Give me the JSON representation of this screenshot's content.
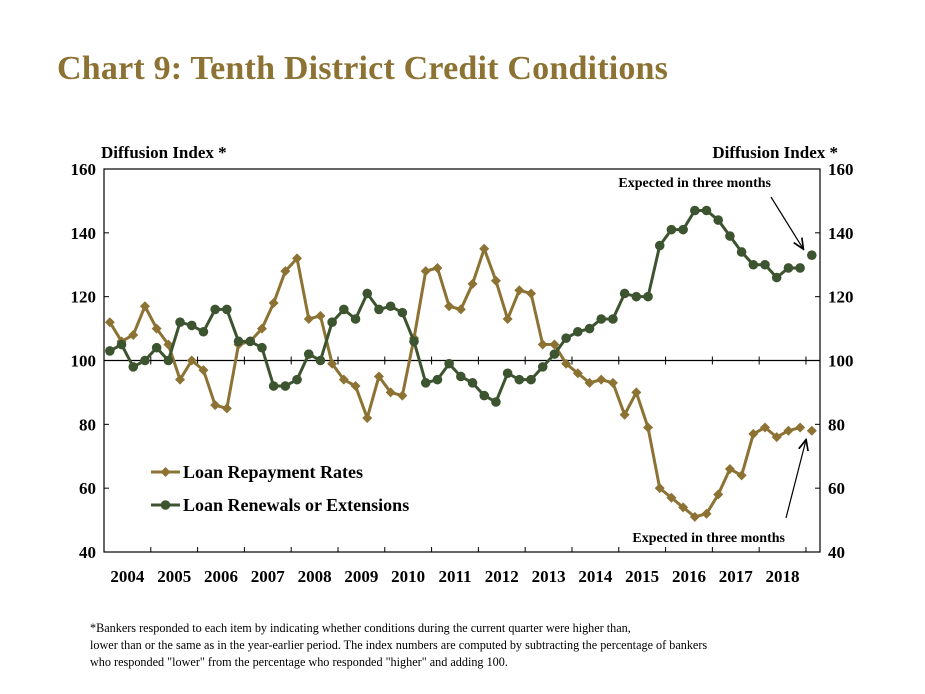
{
  "title": "Chart 9: Tenth District Credit Conditions",
  "footnote": [
    "*Bankers responded to each item by indicating whether conditions during the current quarter were higher than,",
    "lower than or the same as in the year-earlier period.  The index numbers are computed by subtracting the percentage of bankers",
    "who responded \"lower\" from the percentage who responded \"higher\" and adding 100."
  ],
  "chart_data": {
    "type": "line",
    "ylabel_left": "Diffusion Index *",
    "ylabel_right": "Diffusion Index *",
    "ylim": [
      40,
      160
    ],
    "yticks": [
      40,
      60,
      80,
      100,
      120,
      140,
      160
    ],
    "xlim": [
      2004,
      2019.3
    ],
    "x_tick_labels": [
      "2004",
      "2005",
      "2006",
      "2007",
      "2008",
      "2009",
      "2010",
      "2011",
      "2012",
      "2013",
      "2014",
      "2015",
      "2016",
      "2017",
      "2018"
    ],
    "legend_position": "lower-left",
    "annotations": [
      {
        "text": "Expected in three months",
        "target_series": "Loan Renewals or Extensions"
      },
      {
        "text": "Expected in three months",
        "target_series": "Loan Repayment Rates"
      }
    ],
    "series": [
      {
        "name": "Loan Repayment Rates",
        "color": "#8c7233",
        "marker": "diamond",
        "values": [
          112,
          106,
          108,
          117,
          110,
          105,
          94,
          100,
          97,
          86,
          85,
          105,
          106,
          110,
          118,
          128,
          132,
          113,
          114,
          99,
          94,
          92,
          82,
          95,
          90,
          89,
          107,
          128,
          129,
          117,
          116,
          124,
          135,
          125,
          113,
          122,
          121,
          105,
          105,
          99,
          96,
          93,
          94,
          93,
          83,
          90,
          79,
          60,
          57,
          54,
          51,
          52,
          58,
          66,
          64,
          77,
          79,
          76,
          78,
          79
        ],
        "expected": 78
      },
      {
        "name": "Loan Renewals or Extensions",
        "color": "#3d5430",
        "marker": "circle",
        "values": [
          103,
          105,
          98,
          100,
          104,
          100,
          112,
          111,
          109,
          116,
          116,
          106,
          106,
          104,
          92,
          92,
          94,
          102,
          100,
          112,
          116,
          113,
          121,
          116,
          117,
          115,
          106,
          93,
          94,
          99,
          95,
          93,
          89,
          87,
          96,
          94,
          94,
          98,
          102,
          107,
          109,
          110,
          113,
          113,
          121,
          120,
          120,
          136,
          141,
          141,
          147,
          147,
          144,
          139,
          134,
          130,
          130,
          126,
          129,
          129
        ],
        "expected": 133
      }
    ]
  }
}
